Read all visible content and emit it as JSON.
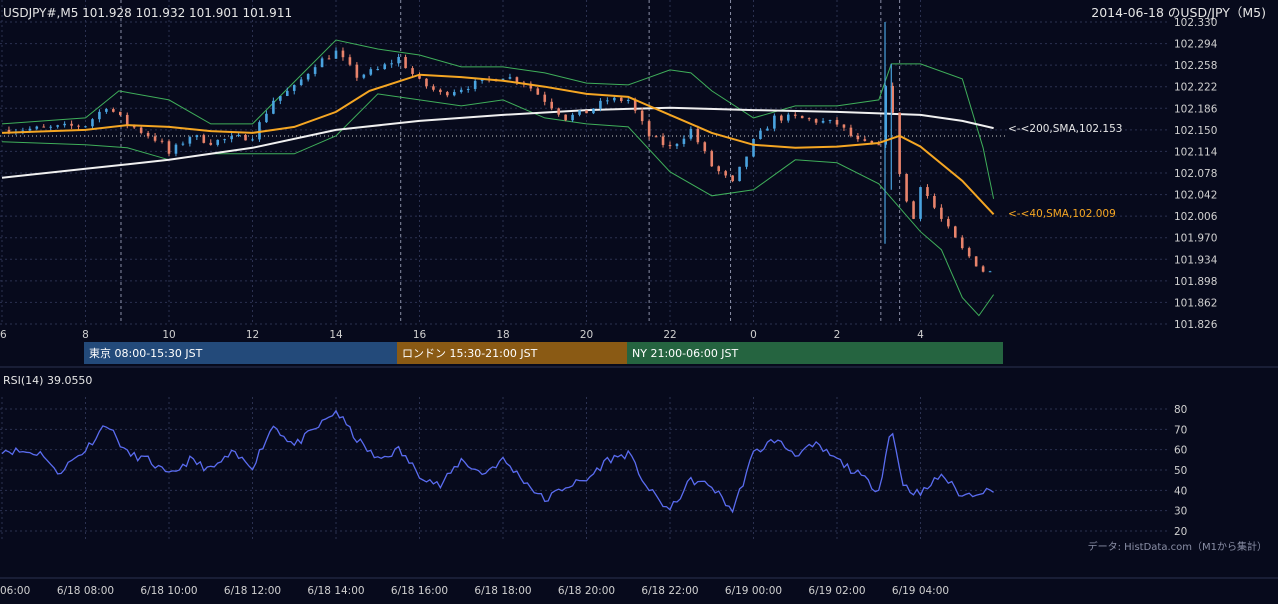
{
  "header": {
    "symbol_ohlc": "USDJPY#,M5 101.928 101.932 101.901 101.911",
    "title_right": "2014-06-18 のUSD/JPY（M5)"
  },
  "colors": {
    "background": "#070a1c",
    "grid": "#2b3150",
    "candle_up": "#4aa3df",
    "candle_down": "#e8836b",
    "sma40": "#f5a623",
    "sma200": "#f0f0f0",
    "bollinger": "#3fae5a",
    "rsi": "#5a6cf0",
    "session_tokyo": "#234a7a",
    "session_london": "#8a5a14",
    "session_ny": "#256440"
  },
  "price_axis_labels": [
    "102.330",
    "102.294",
    "102.258",
    "102.222",
    "102.186",
    "102.150",
    "102.114",
    "102.078",
    "102.042",
    "102.006",
    "101.970",
    "101.934",
    "101.898",
    "101.862",
    "101.826"
  ],
  "hour_labels": [
    "6",
    "8",
    "10",
    "12",
    "14",
    "16",
    "18",
    "20",
    "22",
    "0",
    "2",
    "4"
  ],
  "indicator_labels": {
    "sma200": "<-<200,SMA,102.153",
    "sma40": "<-<40,SMA,102.009"
  },
  "sessions": [
    {
      "label": "東京 08:00-15:30 JST"
    },
    {
      "label": "ロンドン 15:30-21:00 JST"
    },
    {
      "label": "NY 21:00-06:00 JST"
    }
  ],
  "rsi": {
    "label": "RSI(14) 39.0550",
    "axis_labels": [
      "80",
      "70",
      "60",
      "50",
      "40",
      "30",
      "20"
    ]
  },
  "date_labels": [
    "06:00",
    "6/18 08:00",
    "6/18 10:00",
    "6/18 12:00",
    "6/18 14:00",
    "6/18 16:00",
    "6/18 18:00",
    "6/18 20:00",
    "6/18 22:00",
    "6/19 00:00",
    "6/19 02:00",
    "6/19 04:00"
  ],
  "source_note": "データ: HistData.com（M1から集計）",
  "chart_data": {
    "type": "candlestick",
    "timeframe": "M5",
    "x_axis_hours_jst": [
      6,
      8,
      10,
      12,
      14,
      16,
      18,
      20,
      22,
      0,
      2,
      4
    ],
    "ylim": [
      101.826,
      102.33
    ],
    "last": {
      "open": 101.928,
      "high": 101.932,
      "low": 101.901,
      "close": 101.911
    },
    "close_path": [
      [
        6.0,
        102.15
      ],
      [
        7.0,
        102.152
      ],
      [
        8.0,
        102.158
      ],
      [
        8.5,
        102.19
      ],
      [
        9.0,
        102.16
      ],
      [
        9.8,
        102.13
      ],
      [
        10.0,
        102.11
      ],
      [
        10.5,
        102.14
      ],
      [
        11.0,
        102.13
      ],
      [
        12.0,
        102.14
      ],
      [
        12.5,
        102.2
      ],
      [
        13.0,
        102.22
      ],
      [
        13.5,
        102.26
      ],
      [
        14.0,
        102.28
      ],
      [
        14.5,
        102.24
      ],
      [
        15.0,
        102.25
      ],
      [
        15.5,
        102.27
      ],
      [
        16.0,
        102.23
      ],
      [
        16.5,
        102.21
      ],
      [
        17.0,
        102.22
      ],
      [
        18.0,
        102.24
      ],
      [
        18.5,
        102.23
      ],
      [
        19.0,
        102.2
      ],
      [
        19.5,
        102.17
      ],
      [
        20.0,
        102.18
      ],
      [
        20.5,
        102.2
      ],
      [
        21.0,
        102.2
      ],
      [
        21.5,
        102.14
      ],
      [
        22.0,
        102.12
      ],
      [
        22.5,
        102.15
      ],
      [
        23.0,
        102.09
      ],
      [
        23.5,
        102.06
      ],
      [
        24.0,
        102.13
      ],
      [
        24.5,
        102.17
      ],
      [
        25.0,
        102.17
      ],
      [
        26.0,
        102.16
      ],
      [
        26.5,
        102.13
      ],
      [
        27.0,
        102.12
      ],
      [
        27.2,
        102.25
      ],
      [
        27.5,
        102.08
      ],
      [
        27.8,
        101.99
      ],
      [
        28.0,
        102.06
      ],
      [
        28.5,
        102.0
      ],
      [
        29.0,
        101.95
      ],
      [
        29.5,
        101.915
      ],
      [
        29.75,
        101.911
      ]
    ],
    "sma40": [
      [
        6.0,
        102.145
      ],
      [
        8.0,
        102.15
      ],
      [
        9.0,
        102.158
      ],
      [
        10.0,
        102.155
      ],
      [
        11.0,
        102.148
      ],
      [
        12.0,
        102.145
      ],
      [
        13.0,
        102.155
      ],
      [
        14.0,
        102.18
      ],
      [
        14.8,
        102.215
      ],
      [
        16.0,
        102.242
      ],
      [
        17.0,
        102.238
      ],
      [
        18.0,
        102.232
      ],
      [
        19.0,
        102.222
      ],
      [
        20.0,
        102.21
      ],
      [
        21.0,
        102.205
      ],
      [
        22.0,
        102.175
      ],
      [
        23.0,
        102.145
      ],
      [
        24.0,
        102.125
      ],
      [
        25.0,
        102.12
      ],
      [
        26.0,
        102.122
      ],
      [
        27.0,
        102.128
      ],
      [
        27.5,
        102.14
      ],
      [
        28.0,
        102.122
      ],
      [
        29.0,
        102.065
      ],
      [
        29.75,
        102.009
      ]
    ],
    "sma200": [
      [
        6.0,
        102.07
      ],
      [
        8.0,
        102.085
      ],
      [
        10.0,
        102.1
      ],
      [
        12.0,
        102.12
      ],
      [
        14.0,
        102.15
      ],
      [
        16.0,
        102.165
      ],
      [
        18.0,
        102.175
      ],
      [
        20.0,
        102.183
      ],
      [
        22.0,
        102.187
      ],
      [
        24.0,
        102.183
      ],
      [
        26.0,
        102.18
      ],
      [
        28.0,
        102.175
      ],
      [
        29.0,
        102.165
      ],
      [
        29.75,
        102.153
      ]
    ],
    "bollinger_upper": [
      [
        6.0,
        102.16
      ],
      [
        8.0,
        102.17
      ],
      [
        8.8,
        102.215
      ],
      [
        10.0,
        102.2
      ],
      [
        11.0,
        102.16
      ],
      [
        12.0,
        102.16
      ],
      [
        13.0,
        102.23
      ],
      [
        14.0,
        102.3
      ],
      [
        15.0,
        102.285
      ],
      [
        16.0,
        102.275
      ],
      [
        17.0,
        102.255
      ],
      [
        18.0,
        102.255
      ],
      [
        19.0,
        102.245
      ],
      [
        20.0,
        102.228
      ],
      [
        21.0,
        102.225
      ],
      [
        22.0,
        102.25
      ],
      [
        22.5,
        102.245
      ],
      [
        23.0,
        102.215
      ],
      [
        24.0,
        102.17
      ],
      [
        25.0,
        102.19
      ],
      [
        26.0,
        102.19
      ],
      [
        27.0,
        102.2
      ],
      [
        27.3,
        102.26
      ],
      [
        28.0,
        102.26
      ],
      [
        29.0,
        102.235
      ],
      [
        29.5,
        102.12
      ],
      [
        29.75,
        102.035
      ]
    ],
    "bollinger_lower": [
      [
        6.0,
        102.13
      ],
      [
        8.0,
        102.125
      ],
      [
        9.0,
        102.12
      ],
      [
        10.0,
        102.1
      ],
      [
        11.0,
        102.11
      ],
      [
        12.0,
        102.11
      ],
      [
        13.0,
        102.11
      ],
      [
        14.0,
        102.14
      ],
      [
        15.0,
        102.21
      ],
      [
        16.0,
        102.2
      ],
      [
        17.0,
        102.19
      ],
      [
        18.0,
        102.2
      ],
      [
        19.0,
        102.17
      ],
      [
        20.0,
        102.16
      ],
      [
        21.0,
        102.155
      ],
      [
        22.0,
        102.08
      ],
      [
        23.0,
        102.04
      ],
      [
        24.0,
        102.05
      ],
      [
        25.0,
        102.1
      ],
      [
        26.0,
        102.095
      ],
      [
        27.0,
        102.06
      ],
      [
        28.0,
        101.98
      ],
      [
        28.5,
        101.95
      ],
      [
        29.0,
        101.87
      ],
      [
        29.4,
        101.84
      ],
      [
        29.75,
        101.875
      ]
    ],
    "rsi14": [
      [
        6.0,
        60
      ],
      [
        7.0,
        58
      ],
      [
        7.3,
        48
      ],
      [
        8.0,
        60
      ],
      [
        8.5,
        73
      ],
      [
        9.0,
        58
      ],
      [
        9.5,
        55
      ],
      [
        10.0,
        47
      ],
      [
        10.5,
        55
      ],
      [
        11.0,
        50
      ],
      [
        11.5,
        58
      ],
      [
        12.0,
        52
      ],
      [
        12.5,
        72
      ],
      [
        13.0,
        62
      ],
      [
        13.5,
        70
      ],
      [
        14.0,
        79
      ],
      [
        14.5,
        65
      ],
      [
        15.0,
        55
      ],
      [
        15.5,
        60
      ],
      [
        16.0,
        48
      ],
      [
        16.5,
        42
      ],
      [
        17.0,
        55
      ],
      [
        17.5,
        48
      ],
      [
        18.0,
        55
      ],
      [
        18.5,
        45
      ],
      [
        19.0,
        35
      ],
      [
        19.5,
        42
      ],
      [
        20.0,
        45
      ],
      [
        20.5,
        55
      ],
      [
        21.0,
        58
      ],
      [
        21.5,
        40
      ],
      [
        22.0,
        30
      ],
      [
        22.5,
        45
      ],
      [
        23.0,
        42
      ],
      [
        23.5,
        30
      ],
      [
        24.0,
        58
      ],
      [
        24.5,
        65
      ],
      [
        25.0,
        58
      ],
      [
        25.5,
        62
      ],
      [
        26.0,
        55
      ],
      [
        26.5,
        48
      ],
      [
        27.0,
        40
      ],
      [
        27.3,
        71
      ],
      [
        27.6,
        42
      ],
      [
        28.0,
        38
      ],
      [
        28.5,
        48
      ],
      [
        29.0,
        37
      ],
      [
        29.5,
        40
      ],
      [
        29.75,
        39.055
      ]
    ],
    "rsi_ylim": [
      20,
      80
    ],
    "session_hours_jst": [
      [
        8.0,
        15.5
      ],
      [
        15.5,
        21.0
      ],
      [
        21.0,
        30.0
      ]
    ],
    "legend": "right"
  }
}
